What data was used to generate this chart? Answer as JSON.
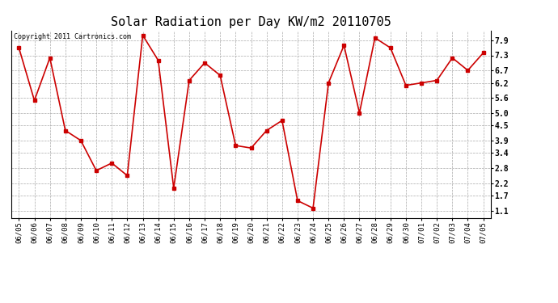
{
  "title": "Solar Radiation per Day KW/m2 20110705",
  "copyright": "Copyright 2011 Cartronics.com",
  "dates": [
    "06/05",
    "06/06",
    "06/07",
    "06/08",
    "06/09",
    "06/10",
    "06/11",
    "06/12",
    "06/13",
    "06/14",
    "06/15",
    "06/16",
    "06/17",
    "06/18",
    "06/19",
    "06/20",
    "06/21",
    "06/22",
    "06/23",
    "06/24",
    "06/25",
    "06/26",
    "06/27",
    "06/28",
    "06/29",
    "06/30",
    "07/01",
    "07/02",
    "07/03",
    "07/04",
    "07/05"
  ],
  "values": [
    7.6,
    5.5,
    7.2,
    4.3,
    3.9,
    2.7,
    3.0,
    2.5,
    8.1,
    7.1,
    2.0,
    6.3,
    7.0,
    6.5,
    3.7,
    3.6,
    4.3,
    4.7,
    1.5,
    1.2,
    6.2,
    7.7,
    5.0,
    8.0,
    7.6,
    6.1,
    6.2,
    6.3,
    7.2,
    6.7,
    7.4
  ],
  "yticks": [
    1.1,
    1.7,
    2.2,
    2.8,
    3.4,
    3.9,
    4.5,
    5.0,
    5.6,
    6.2,
    6.7,
    7.3,
    7.9
  ],
  "ylim": [
    0.8,
    8.3
  ],
  "line_color": "#cc0000",
  "marker": "s",
  "marker_size": 2.5,
  "bg_color": "#ffffff",
  "grid_color": "#aaaaaa",
  "title_fontsize": 11,
  "copyright_fontsize": 6,
  "tick_fontsize": 6.5,
  "ytick_fontsize": 7
}
